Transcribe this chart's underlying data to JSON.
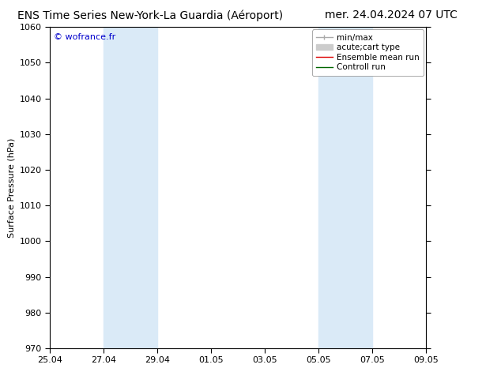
{
  "title_left": "ENS Time Series New-York-La Guardia (Aéroport)",
  "title_right": "mer. 24.04.2024 07 UTC",
  "ylabel": "Surface Pressure (hPa)",
  "ylim": [
    970,
    1060
  ],
  "yticks": [
    970,
    980,
    990,
    1000,
    1010,
    1020,
    1030,
    1040,
    1050,
    1060
  ],
  "xlim": [
    0,
    14
  ],
  "xtick_labels": [
    "25.04",
    "27.04",
    "29.04",
    "01.05",
    "03.05",
    "05.05",
    "07.05",
    "09.05"
  ],
  "xtick_positions": [
    0,
    2,
    4,
    6,
    8,
    10,
    12,
    14
  ],
  "shaded_bands": [
    {
      "x_start": 2,
      "x_end": 4
    },
    {
      "x_start": 10,
      "x_end": 12
    }
  ],
  "shaded_color": "#daeaf7",
  "background_color": "#ffffff",
  "watermark_text": "© wofrance.fr",
  "watermark_color": "#0000cc",
  "legend_entries": [
    {
      "label": "min/max",
      "color": "#aaaaaa",
      "lw": 1,
      "style": "errorbar"
    },
    {
      "label": "acute;cart type",
      "color": "#cccccc",
      "lw": 5,
      "style": "thick"
    },
    {
      "label": "Ensemble mean run",
      "color": "#dd0000",
      "lw": 1,
      "style": "line"
    },
    {
      "label": "Controll run",
      "color": "#006600",
      "lw": 1,
      "style": "line"
    }
  ],
  "title_fontsize": 10,
  "tick_fontsize": 8,
  "ylabel_fontsize": 8,
  "legend_fontsize": 7.5
}
